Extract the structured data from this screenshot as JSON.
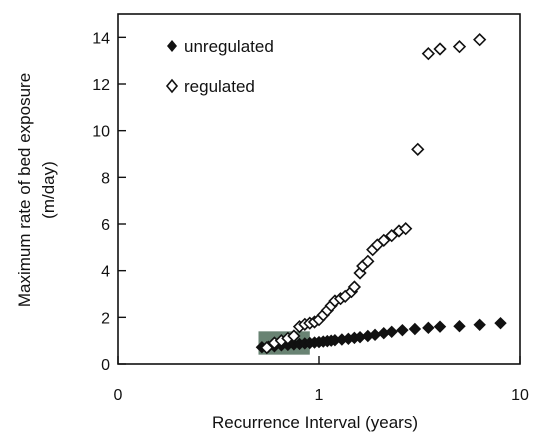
{
  "chart_data": {
    "type": "scatter",
    "xscale": "log",
    "xlim": [
      0.1,
      10
    ],
    "ylim": [
      0,
      15
    ],
    "x_ticks": [
      {
        "value": 0.1,
        "label": "0"
      },
      {
        "value": 1,
        "label": "1"
      },
      {
        "value": 10,
        "label": "10"
      }
    ],
    "y_ticks": [
      0,
      2,
      4,
      6,
      8,
      10,
      12,
      14
    ],
    "xlabel": "Recurrence Interval (years)",
    "ylabel_lines": [
      "Maximum rate of bed exposure",
      "(m/day)"
    ],
    "grid": false,
    "legend_position": "top-left",
    "series": [
      {
        "name": "unregulated",
        "marker": "filled-diamond",
        "color": "#111111",
        "points": [
          [
            0.52,
            0.72
          ],
          [
            0.56,
            0.74
          ],
          [
            0.6,
            0.76
          ],
          [
            0.65,
            0.8
          ],
          [
            0.7,
            0.82
          ],
          [
            0.75,
            0.84
          ],
          [
            0.8,
            0.86
          ],
          [
            0.85,
            0.88
          ],
          [
            0.9,
            0.9
          ],
          [
            0.95,
            0.92
          ],
          [
            1.0,
            0.94
          ],
          [
            1.05,
            0.96
          ],
          [
            1.1,
            0.98
          ],
          [
            1.15,
            1.0
          ],
          [
            1.2,
            1.02
          ],
          [
            1.3,
            1.05
          ],
          [
            1.4,
            1.08
          ],
          [
            1.5,
            1.12
          ],
          [
            1.6,
            1.15
          ],
          [
            1.75,
            1.2
          ],
          [
            1.9,
            1.25
          ],
          [
            2.1,
            1.32
          ],
          [
            2.3,
            1.38
          ],
          [
            2.6,
            1.45
          ],
          [
            3.0,
            1.5
          ],
          [
            3.5,
            1.55
          ],
          [
            4.0,
            1.6
          ],
          [
            5.0,
            1.62
          ],
          [
            6.3,
            1.68
          ],
          [
            8.0,
            1.75
          ]
        ]
      },
      {
        "name": "regulated",
        "marker": "open-diamond",
        "color": "#111111",
        "points": [
          [
            0.55,
            0.7
          ],
          [
            0.6,
            0.9
          ],
          [
            0.65,
            1.0
          ],
          [
            0.7,
            1.1
          ],
          [
            0.75,
            1.2
          ],
          [
            0.8,
            1.6
          ],
          [
            0.85,
            1.7
          ],
          [
            0.9,
            1.75
          ],
          [
            0.95,
            1.8
          ],
          [
            1.0,
            1.9
          ],
          [
            1.05,
            2.1
          ],
          [
            1.1,
            2.3
          ],
          [
            1.15,
            2.5
          ],
          [
            1.2,
            2.7
          ],
          [
            1.28,
            2.8
          ],
          [
            1.35,
            2.9
          ],
          [
            1.45,
            3.1
          ],
          [
            1.5,
            3.3
          ],
          [
            1.6,
            3.9
          ],
          [
            1.65,
            4.2
          ],
          [
            1.75,
            4.4
          ],
          [
            1.85,
            4.9
          ],
          [
            1.95,
            5.1
          ],
          [
            2.1,
            5.3
          ],
          [
            2.3,
            5.5
          ],
          [
            2.5,
            5.7
          ],
          [
            2.7,
            5.8
          ],
          [
            3.1,
            9.2
          ],
          [
            3.5,
            13.3
          ],
          [
            4.0,
            13.5
          ],
          [
            5.0,
            13.6
          ],
          [
            6.3,
            13.9
          ]
        ]
      }
    ],
    "shaded_region": {
      "x": [
        0.5,
        0.9
      ],
      "y": [
        0.4,
        1.4
      ],
      "color": "#4f6d5a"
    }
  }
}
